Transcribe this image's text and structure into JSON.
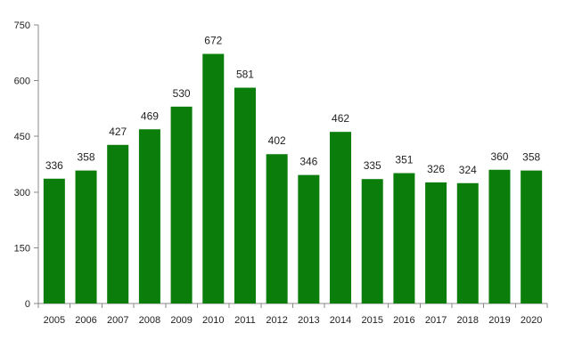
{
  "chart_data": {
    "type": "bar",
    "title": "",
    "xlabel": "",
    "ylabel": "",
    "categories": [
      "2005",
      "2006",
      "2007",
      "2008",
      "2009",
      "2010",
      "2011",
      "2012",
      "2013",
      "2014",
      "2015",
      "2016",
      "2017",
      "2018",
      "2019",
      "2020"
    ],
    "values": [
      336,
      358,
      427,
      469,
      530,
      672,
      581,
      402,
      346,
      462,
      335,
      351,
      326,
      324,
      360,
      358
    ],
    "ylim": [
      0,
      750
    ],
    "yticks": [
      0,
      150,
      300,
      450,
      600,
      750
    ],
    "grid": false,
    "legend": "none",
    "bar_color": "#0a7d0a",
    "data_labels": true
  }
}
